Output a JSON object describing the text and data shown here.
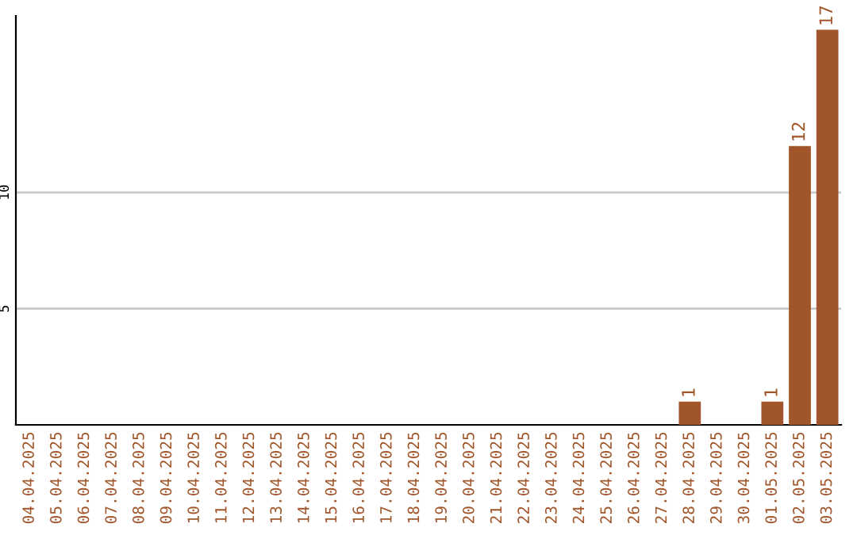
{
  "chart_data": {
    "type": "bar",
    "categories": [
      "04.04.2025",
      "05.04.2025",
      "06.04.2025",
      "07.04.2025",
      "08.04.2025",
      "09.04.2025",
      "10.04.2025",
      "11.04.2025",
      "12.04.2025",
      "13.04.2025",
      "14.04.2025",
      "15.04.2025",
      "16.04.2025",
      "17.04.2025",
      "18.04.2025",
      "19.04.2025",
      "20.04.2025",
      "21.04.2025",
      "22.04.2025",
      "23.04.2025",
      "24.04.2025",
      "25.04.2025",
      "26.04.2025",
      "27.04.2025",
      "28.04.2025",
      "29.04.2025",
      "30.04.2025",
      "01.05.2025",
      "02.05.2025",
      "03.05.2025"
    ],
    "values": [
      0,
      0,
      0,
      0,
      0,
      0,
      0,
      0,
      0,
      0,
      0,
      0,
      0,
      0,
      0,
      0,
      0,
      0,
      0,
      0,
      0,
      0,
      0,
      0,
      1,
      0,
      0,
      1,
      12,
      17
    ],
    "value_labels": [
      null,
      null,
      null,
      null,
      null,
      null,
      null,
      null,
      null,
      null,
      null,
      null,
      null,
      null,
      null,
      null,
      null,
      null,
      null,
      null,
      null,
      null,
      null,
      null,
      "1",
      null,
      null,
      "1",
      "12",
      "17"
    ],
    "color": "#a0562a",
    "ylim": [
      0,
      17.6
    ],
    "yticks": [
      5,
      10
    ],
    "grid": "y"
  }
}
